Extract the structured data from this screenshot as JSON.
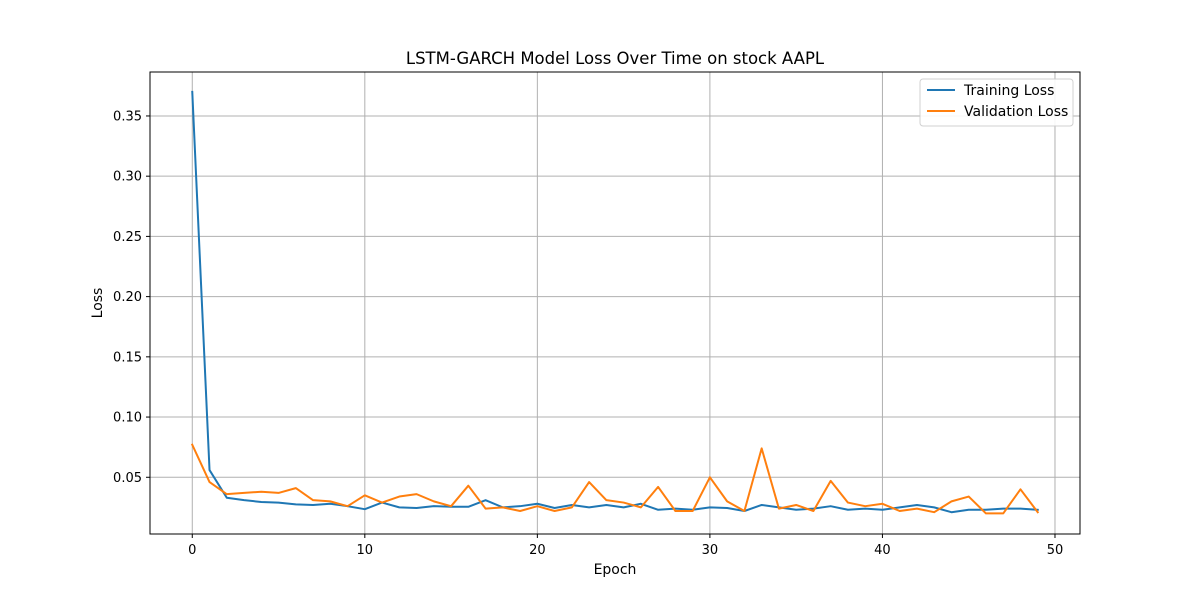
{
  "chart_data": {
    "type": "line",
    "title": "LSTM-GARCH Model Loss Over Time on stock AAPL",
    "xlabel": "Epoch",
    "ylabel": "Loss",
    "xlim": [
      -2.45,
      51.45
    ],
    "ylim": [
      0.0029,
      0.3865
    ],
    "xticks": [
      0,
      10,
      20,
      30,
      40,
      50
    ],
    "yticks": [
      0.05,
      0.1,
      0.15,
      0.2,
      0.25,
      0.3,
      0.35
    ],
    "ytick_labels": [
      "0.05",
      "0.10",
      "0.15",
      "0.20",
      "0.25",
      "0.30",
      "0.35"
    ],
    "grid": true,
    "legend_position": "top-right",
    "x": [
      0,
      1,
      2,
      3,
      4,
      5,
      6,
      7,
      8,
      9,
      10,
      11,
      12,
      13,
      14,
      15,
      16,
      17,
      18,
      19,
      20,
      21,
      22,
      23,
      24,
      25,
      26,
      27,
      28,
      29,
      30,
      31,
      32,
      33,
      34,
      35,
      36,
      37,
      38,
      39,
      40,
      41,
      42,
      43,
      44,
      45,
      46,
      47,
      48,
      49
    ],
    "series": [
      {
        "name": "Training Loss",
        "color": "#1f77b4",
        "values": [
          0.37,
          0.056,
          0.033,
          0.031,
          0.0295,
          0.029,
          0.0275,
          0.027,
          0.028,
          0.026,
          0.0235,
          0.029,
          0.025,
          0.0245,
          0.026,
          0.0255,
          0.0255,
          0.031,
          0.025,
          0.026,
          0.028,
          0.0245,
          0.027,
          0.025,
          0.027,
          0.025,
          0.028,
          0.023,
          0.024,
          0.023,
          0.025,
          0.0245,
          0.022,
          0.027,
          0.025,
          0.023,
          0.024,
          0.026,
          0.023,
          0.024,
          0.023,
          0.025,
          0.027,
          0.025,
          0.021,
          0.023,
          0.023,
          0.024,
          0.024,
          0.023
        ]
      },
      {
        "name": "Validation Loss",
        "color": "#ff7f0e",
        "values": [
          0.077,
          0.046,
          0.036,
          0.037,
          0.038,
          0.037,
          0.041,
          0.031,
          0.03,
          0.026,
          0.035,
          0.029,
          0.034,
          0.036,
          0.03,
          0.026,
          0.043,
          0.024,
          0.025,
          0.022,
          0.026,
          0.022,
          0.025,
          0.046,
          0.031,
          0.029,
          0.025,
          0.042,
          0.022,
          0.022,
          0.05,
          0.03,
          0.022,
          0.074,
          0.024,
          0.027,
          0.022,
          0.047,
          0.029,
          0.026,
          0.028,
          0.022,
          0.024,
          0.021,
          0.03,
          0.034,
          0.02,
          0.02,
          0.04,
          0.021
        ]
      }
    ]
  }
}
